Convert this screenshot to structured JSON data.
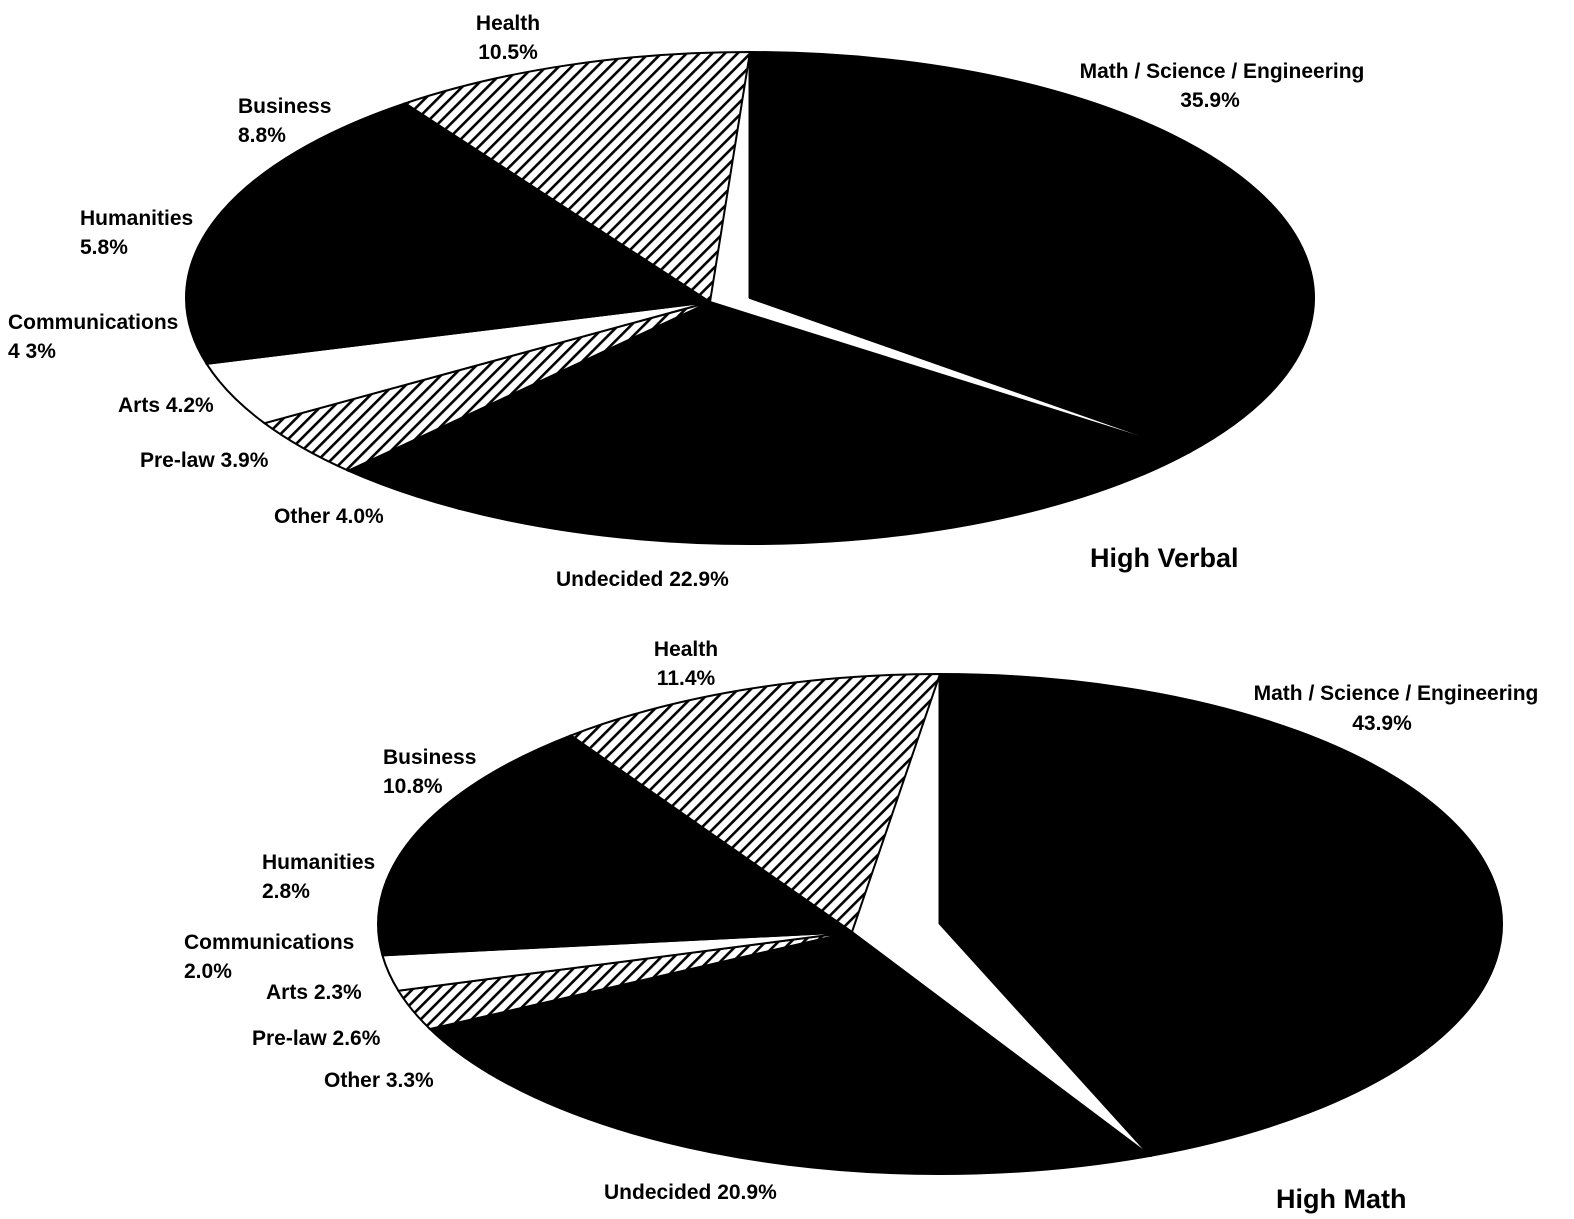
{
  "chart_data": [
    {
      "type": "pie",
      "title": "High Verbal",
      "slices": [
        {
          "label": "Math / Science / Engineering",
          "value": 35.9,
          "value_text": "35.9%",
          "fill": "solid"
        },
        {
          "label": "Undecided",
          "value": 22.9,
          "value_text": "22.9%",
          "fill": "solid"
        },
        {
          "label": "Other",
          "value": 4.0,
          "value_text": "4.0%",
          "fill": "solid"
        },
        {
          "label": "Pre-law",
          "value": 3.9,
          "value_text": "3.9%",
          "fill": "hatch"
        },
        {
          "label": "Arts",
          "value": 4.2,
          "value_text": "4.2%",
          "fill": "white"
        },
        {
          "label": "Communications",
          "value": 4.3,
          "value_text": "4 3%",
          "fill": "solid"
        },
        {
          "label": "Humanities",
          "value": 5.8,
          "value_text": "5.8%",
          "fill": "solid"
        },
        {
          "label": "Business",
          "value": 8.8,
          "value_text": "8.8%",
          "fill": "solid"
        },
        {
          "label": "Health",
          "value": 10.5,
          "value_text": "10.5%",
          "fill": "hatch"
        }
      ]
    },
    {
      "type": "pie",
      "title": "High Math",
      "slices": [
        {
          "label": "Math / Science / Engineering",
          "value": 43.9,
          "value_text": "43.9%",
          "fill": "solid"
        },
        {
          "label": "Undecided",
          "value": 20.9,
          "value_text": "20.9%",
          "fill": "solid"
        },
        {
          "label": "Other",
          "value": 3.3,
          "value_text": "3.3%",
          "fill": "solid"
        },
        {
          "label": "Pre-law",
          "value": 2.6,
          "value_text": "2.6%",
          "fill": "hatch"
        },
        {
          "label": "Arts",
          "value": 2.3,
          "value_text": "2.3%",
          "fill": "white"
        },
        {
          "label": "Communications",
          "value": 2.0,
          "value_text": "2.0%",
          "fill": "solid"
        },
        {
          "label": "Humanities",
          "value": 2.8,
          "value_text": "2.8%",
          "fill": "solid"
        },
        {
          "label": "Business",
          "value": 10.8,
          "value_text": "10.8%",
          "fill": "solid"
        },
        {
          "label": "Health",
          "value": 11.4,
          "value_text": "11.4%",
          "fill": "hatch"
        }
      ]
    }
  ]
}
